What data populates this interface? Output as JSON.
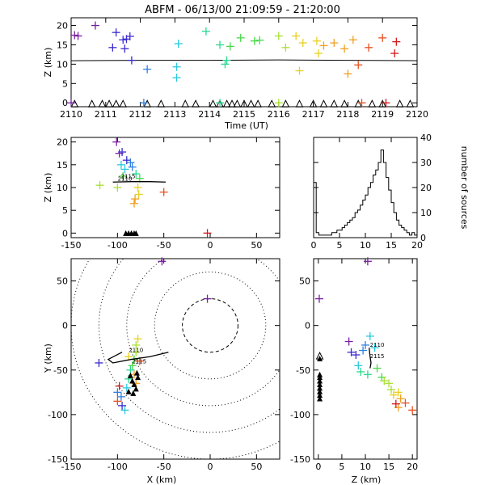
{
  "title": "ABFM - 06/13/00 21:09:59 - 21:20:00",
  "colors": {
    "axis": "#000000",
    "scale": [
      "#7a1fa0",
      "#3a2bd0",
      "#2f7fe0",
      "#28c8e0",
      "#28d890",
      "#4ad84a",
      "#a8e030",
      "#e8d020",
      "#f0a020",
      "#e85020",
      "#d01818"
    ]
  },
  "chart_data": [
    {
      "type": "scatter",
      "panel": "time-height",
      "xlabel": "Time (UT)",
      "ylabel": "Z (km)",
      "xlim": [
        2110,
        2120
      ],
      "ylim": [
        -1,
        22
      ],
      "xticks": [
        "2110",
        "2111",
        "2112",
        "2113",
        "2114",
        "2115",
        "2116",
        "2117",
        "2118",
        "2119",
        "2120"
      ],
      "yticks": [
        "0",
        "5",
        "10",
        "15",
        "20"
      ],
      "points": [
        {
          "x": 2110.1,
          "y": 17.5
        },
        {
          "x": 2110.2,
          "y": 17.3
        },
        {
          "x": 2110.7,
          "y": 20.0
        },
        {
          "x": 2111.3,
          "y": 18.2
        },
        {
          "x": 2111.2,
          "y": 14.3
        },
        {
          "x": 2111.5,
          "y": 16.3
        },
        {
          "x": 2111.6,
          "y": 16.5
        },
        {
          "x": 2111.7,
          "y": 17.2
        },
        {
          "x": 2111.55,
          "y": 14.0
        },
        {
          "x": 2111.75,
          "y": 11.0
        },
        {
          "x": 2112.2,
          "y": 8.7
        },
        {
          "x": 2113.1,
          "y": 15.3
        },
        {
          "x": 2113.05,
          "y": 9.3
        },
        {
          "x": 2113.05,
          "y": 6.5
        },
        {
          "x": 2113.9,
          "y": 18.5
        },
        {
          "x": 2114.3,
          "y": 15.0
        },
        {
          "x": 2114.5,
          "y": 11.0
        },
        {
          "x": 2114.45,
          "y": 10.0
        },
        {
          "x": 2114.6,
          "y": 14.6
        },
        {
          "x": 2114.9,
          "y": 16.8
        },
        {
          "x": 2115.3,
          "y": 16.0
        },
        {
          "x": 2115.45,
          "y": 16.2
        },
        {
          "x": 2116.0,
          "y": 17.3
        },
        {
          "x": 2116.2,
          "y": 14.3
        },
        {
          "x": 2116.5,
          "y": 17.3
        },
        {
          "x": 2116.7,
          "y": 15.5
        },
        {
          "x": 2116.6,
          "y": 8.3
        },
        {
          "x": 2117.1,
          "y": 16.0
        },
        {
          "x": 2117.15,
          "y": 12.8
        },
        {
          "x": 2117.3,
          "y": 14.8
        },
        {
          "x": 2117.6,
          "y": 15.5
        },
        {
          "x": 2117.9,
          "y": 14.0
        },
        {
          "x": 2118.15,
          "y": 16.3
        },
        {
          "x": 2118.3,
          "y": 9.8
        },
        {
          "x": 2118.0,
          "y": 7.5
        },
        {
          "x": 2118.6,
          "y": 14.3
        },
        {
          "x": 2119.0,
          "y": 16.8
        },
        {
          "x": 2119.4,
          "y": 15.8
        },
        {
          "x": 2119.35,
          "y": 12.8
        },
        {
          "x": 2110.0,
          "y": 0
        },
        {
          "x": 2112.1,
          "y": 0
        },
        {
          "x": 2114.3,
          "y": 0
        },
        {
          "x": 2116.0,
          "y": 0
        },
        {
          "x": 2118.4,
          "y": 0
        },
        {
          "x": 2119.1,
          "y": 0
        }
      ],
      "line": {
        "x": [
          2110,
          2112,
          2114,
          2116,
          2118,
          2120
        ],
        "y": [
          10.9,
          11.0,
          11.0,
          11.1,
          11.0,
          10.9
        ]
      },
      "stations_x": [
        2110.1,
        2110.6,
        2110.9,
        2111.1,
        2111.3,
        2111.5,
        2112.2,
        2112.6,
        2113.3,
        2113.6,
        2114.1,
        2114.3,
        2114.5,
        2114.65,
        2114.8,
        2115.0,
        2115.2,
        2115.4,
        2115.8,
        2116.2,
        2116.6,
        2117.0,
        2117.3,
        2117.6,
        2117.9,
        2118.3,
        2118.7,
        2119.0,
        2119.5,
        2119.8
      ]
    },
    {
      "type": "scatter",
      "panel": "x-height",
      "ylabel": "Z (km)",
      "xlim": [
        -150,
        75
      ],
      "ylim": [
        -1,
        21
      ],
      "xticks": [
        "-150",
        "-100",
        "-50",
        "0",
        "50"
      ],
      "yticks": [
        "0",
        "5",
        "10",
        "15",
        "20"
      ],
      "points": [
        {
          "x": -101,
          "y": 20.0
        },
        {
          "x": -98,
          "y": 17.5
        },
        {
          "x": -95,
          "y": 17.8
        },
        {
          "x": -90,
          "y": 16.0
        },
        {
          "x": -86,
          "y": 15.5
        },
        {
          "x": -84,
          "y": 14.5
        },
        {
          "x": -96,
          "y": 15.0
        },
        {
          "x": -92,
          "y": 14.0
        },
        {
          "x": -80,
          "y": 13.0
        },
        {
          "x": -94,
          "y": 12.5
        },
        {
          "x": -76,
          "y": 12.0
        },
        {
          "x": -119,
          "y": 10.5
        },
        {
          "x": -100,
          "y": 10.0
        },
        {
          "x": -78,
          "y": 10.0
        },
        {
          "x": -77,
          "y": 8.5
        },
        {
          "x": -81,
          "y": 7.5
        },
        {
          "x": -82,
          "y": 6.5
        },
        {
          "x": -50,
          "y": 9.0
        },
        {
          "x": -3,
          "y": 0
        }
      ],
      "track": {
        "x": [
          -105,
          -85,
          -65,
          -48
        ],
        "y": [
          11.2,
          11.3,
          11.3,
          11.2
        ]
      },
      "track_labels": [
        "2110",
        "2115"
      ],
      "stations_x": [
        -91,
        -88,
        -85,
        -82,
        -80
      ]
    },
    {
      "type": "bar",
      "panel": "height-histogram",
      "ylabel": "number of sources",
      "xlim": [
        0,
        20
      ],
      "ylim": [
        0,
        40
      ],
      "xticks": [
        "0",
        "5",
        "10",
        "15",
        "20"
      ],
      "yticks": [
        "0",
        "10",
        "20",
        "30",
        "40"
      ],
      "bin_width": 0.5,
      "x": [
        0,
        0.5,
        1,
        1.5,
        2,
        2.5,
        3,
        3.5,
        4,
        4.5,
        5,
        5.5,
        6,
        6.5,
        7,
        7.5,
        8,
        8.5,
        9,
        9.5,
        10,
        10.5,
        11,
        11.5,
        12,
        12.5,
        13,
        13.5,
        14,
        14.5,
        15,
        15.5,
        16,
        16.5,
        17,
        17.5,
        18,
        18.5,
        19,
        19.5
      ],
      "values": [
        22,
        2,
        1,
        1,
        1,
        1,
        1,
        2,
        2,
        3,
        3,
        4,
        5,
        6,
        7,
        8,
        10,
        11,
        13,
        15,
        17,
        20,
        22,
        25,
        27,
        30,
        35,
        30,
        24,
        19,
        14,
        10,
        7,
        5,
        4,
        3,
        2,
        1,
        2,
        1
      ]
    },
    {
      "type": "scatter",
      "panel": "plan-view",
      "xlabel": "X (km)",
      "ylabel": "Y (km)",
      "xlim": [
        -150,
        75
      ],
      "ylim": [
        -150,
        75
      ],
      "xticks": [
        "-150",
        "-100",
        "-50",
        "0",
        "50"
      ],
      "yticks": [
        "-150",
        "-100",
        "-50",
        "0",
        "50"
      ],
      "range_rings_km": [
        30,
        60,
        90,
        120,
        150
      ],
      "points": [
        {
          "x": -3,
          "y": 30
        },
        {
          "x": -52,
          "y": 72
        },
        {
          "x": -120,
          "y": -42
        },
        {
          "x": -95,
          "y": -90
        },
        {
          "x": -100,
          "y": -75
        },
        {
          "x": -96,
          "y": -80
        },
        {
          "x": -92,
          "y": -95
        },
        {
          "x": -90,
          "y": -70
        },
        {
          "x": -88,
          "y": -60
        },
        {
          "x": -86,
          "y": -50
        },
        {
          "x": -84,
          "y": -45
        },
        {
          "x": -82,
          "y": -38
        },
        {
          "x": -80,
          "y": -30
        },
        {
          "x": -80,
          "y": -22
        },
        {
          "x": -78,
          "y": -15
        },
        {
          "x": -88,
          "y": -35
        },
        {
          "x": -82,
          "y": -55
        },
        {
          "x": -80,
          "y": -65
        },
        {
          "x": -76,
          "y": -40
        },
        {
          "x": -100,
          "y": -85
        },
        {
          "x": -98,
          "y": -68
        }
      ],
      "track": {
        "x": [
          -95,
          -110,
          -105,
          -85,
          -65,
          -45
        ],
        "y": [
          -30,
          -38,
          -42,
          -38,
          -35,
          -30
        ]
      },
      "track_labels": [
        "2110",
        "2115"
      ],
      "stations": [
        {
          "x": -86,
          "y": -56
        },
        {
          "x": -84,
          "y": -62
        },
        {
          "x": -82,
          "y": -66
        },
        {
          "x": -80,
          "y": -71
        },
        {
          "x": -83,
          "y": -76
        },
        {
          "x": -78,
          "y": -58
        },
        {
          "x": -88,
          "y": -74
        },
        {
          "x": -79,
          "y": -53
        }
      ]
    },
    {
      "type": "scatter",
      "panel": "height-y",
      "xlabel": "Z (km)",
      "xlim": [
        -1,
        21
      ],
      "ylim": [
        -150,
        75
      ],
      "xticks": [
        "0",
        "5",
        "10",
        "15",
        "20"
      ],
      "yticks": [
        "-150",
        "-100",
        "-50",
        "0",
        "50"
      ],
      "points": [
        {
          "x": 0.2,
          "y": 30
        },
        {
          "x": 10.5,
          "y": 72
        },
        {
          "x": 6.5,
          "y": -18
        },
        {
          "x": 7.0,
          "y": -30
        },
        {
          "x": 8.0,
          "y": -33
        },
        {
          "x": 9.5,
          "y": -28
        },
        {
          "x": 10.0,
          "y": -22
        },
        {
          "x": 11.0,
          "y": -12
        },
        {
          "x": 12.0,
          "y": -25
        },
        {
          "x": 8.5,
          "y": -45
        },
        {
          "x": 9.0,
          "y": -52
        },
        {
          "x": 10.5,
          "y": -55
        },
        {
          "x": 12.5,
          "y": -48
        },
        {
          "x": 13.5,
          "y": -58
        },
        {
          "x": 14.0,
          "y": -62
        },
        {
          "x": 15.0,
          "y": -65
        },
        {
          "x": 15.5,
          "y": -72
        },
        {
          "x": 16.0,
          "y": -78
        },
        {
          "x": 17.0,
          "y": -75
        },
        {
          "x": 17.5,
          "y": -82
        },
        {
          "x": 17.0,
          "y": -92
        },
        {
          "x": 18.5,
          "y": -87
        },
        {
          "x": 20.0,
          "y": -95
        },
        {
          "x": 16.5,
          "y": -88
        }
      ],
      "track": {
        "x": [
          10.8,
          11.0,
          11.2,
          11.0
        ],
        "y": [
          -25,
          -35,
          -42,
          -48
        ]
      },
      "track_labels": [
        "2110",
        "2115"
      ],
      "stations_y": [
        -37,
        -55,
        -58,
        -62,
        -66,
        -70,
        -74,
        -78,
        -82
      ]
    }
  ]
}
